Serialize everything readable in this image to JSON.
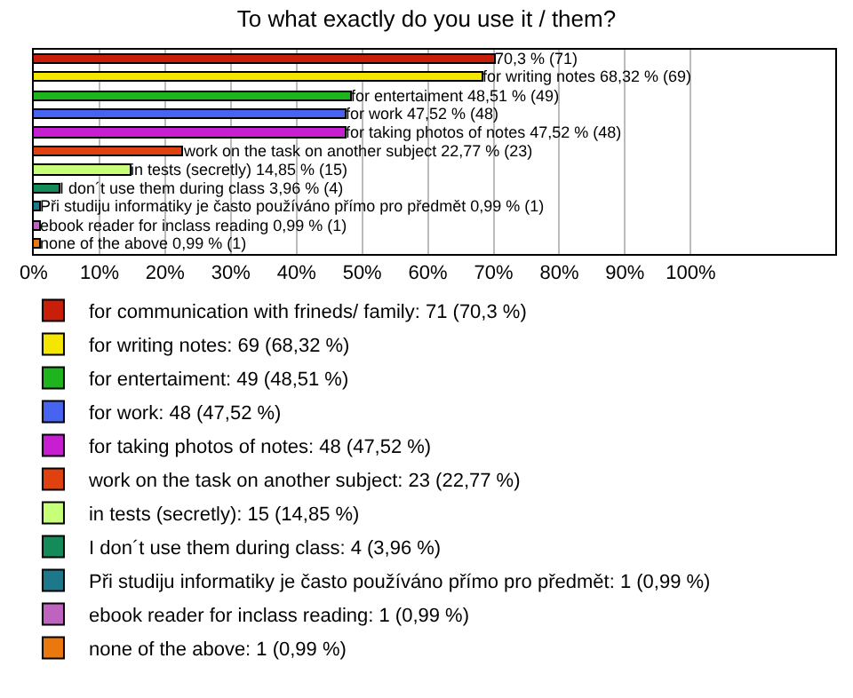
{
  "chart_data": {
    "type": "bar",
    "orientation": "horizontal",
    "title": "To what exactly do you use it / them?",
    "categories": [
      null,
      null,
      null,
      null,
      null,
      null,
      null,
      null,
      null,
      null,
      null
    ],
    "xlim": [
      0,
      122
    ],
    "xticks": [
      {
        "value": 0,
        "label": "0%"
      },
      {
        "value": 10,
        "label": "10%"
      },
      {
        "value": 20,
        "label": "20%"
      },
      {
        "value": 30,
        "label": "30%"
      },
      {
        "value": 40,
        "label": "40%"
      },
      {
        "value": 50,
        "label": "50%"
      },
      {
        "value": 60,
        "label": "60%"
      },
      {
        "value": 70,
        "label": "70%"
      },
      {
        "value": 80,
        "label": "80%"
      },
      {
        "value": 90,
        "label": "90%"
      },
      {
        "value": 100,
        "label": "100%"
      }
    ],
    "grid": "x",
    "legend": "bottom",
    "tick_labels": "x",
    "series": [
      {
        "name": "for communication with frineds/ family: 71 (70,3 %)",
        "color": "#c81e0a",
        "values": [
          70.3,
          null,
          null,
          null,
          null,
          null,
          null,
          null,
          null,
          null,
          null
        ],
        "value_labels": [
          "70,3 % (71)",
          null,
          null,
          null,
          null,
          null,
          null,
          null,
          null,
          null,
          null
        ]
      },
      {
        "name": "for writing notes: 69 (68,32 %)",
        "color": "#f5e600",
        "values": [
          null,
          68.32,
          null,
          null,
          null,
          null,
          null,
          null,
          null,
          null,
          null
        ],
        "value_labels": [
          null,
          "for writing notes 68,32 % (69)",
          null,
          null,
          null,
          null,
          null,
          null,
          null,
          null,
          null
        ]
      },
      {
        "name": "for entertaiment: 49 (48,51 %)",
        "color": "#1eb41e",
        "values": [
          null,
          null,
          48.51,
          null,
          null,
          null,
          null,
          null,
          null,
          null,
          null
        ],
        "value_labels": [
          null,
          null,
          "for entertaiment 48,51 % (49)",
          null,
          null,
          null,
          null,
          null,
          null,
          null,
          null
        ]
      },
      {
        "name": "for work: 48 (47,52 %)",
        "color": "#4664f0",
        "values": [
          null,
          null,
          null,
          47.52,
          null,
          null,
          null,
          null,
          null,
          null,
          null
        ],
        "value_labels": [
          null,
          null,
          null,
          "for work 47,52 % (48)",
          null,
          null,
          null,
          null,
          null,
          null,
          null
        ]
      },
      {
        "name": "for taking photos of notes: 48 (47,52 %)",
        "color": "#c81ed2",
        "values": [
          null,
          null,
          null,
          null,
          47.52,
          null,
          null,
          null,
          null,
          null,
          null
        ],
        "value_labels": [
          null,
          null,
          null,
          null,
          "for taking photos of notes 47,52 % (48)",
          null,
          null,
          null,
          null,
          null,
          null
        ]
      },
      {
        "name": "work on the task on another subject: 23 (22,77 %)",
        "color": "#e1410f",
        "values": [
          null,
          null,
          null,
          null,
          null,
          22.77,
          null,
          null,
          null,
          null,
          null
        ],
        "value_labels": [
          null,
          null,
          null,
          null,
          null,
          "work on the task on another subject 22,77 % (23)",
          null,
          null,
          null,
          null,
          null
        ]
      },
      {
        "name": "in tests (secretly): 15 (14,85 %)",
        "color": "#c8ff78",
        "values": [
          null,
          null,
          null,
          null,
          null,
          null,
          14.85,
          null,
          null,
          null,
          null
        ],
        "value_labels": [
          null,
          null,
          null,
          null,
          null,
          null,
          "in tests (secretly) 14,85 % (15)",
          null,
          null,
          null,
          null
        ]
      },
      {
        "name": "I don´t use them during class: 4 (3,96 %)",
        "color": "#148c5a",
        "values": [
          null,
          null,
          null,
          null,
          null,
          null,
          null,
          3.96,
          null,
          null,
          null
        ],
        "value_labels": [
          null,
          null,
          null,
          null,
          null,
          null,
          null,
          "I don´t use them during class 3,96 % (4)",
          null,
          null,
          null
        ]
      },
      {
        "name": "Při studiju informatiky je často používáno přímo pro předmět: 1 (0,99 %)",
        "color": "#1e788c",
        "values": [
          null,
          null,
          null,
          null,
          null,
          null,
          null,
          null,
          0.99,
          null,
          null
        ],
        "value_labels": [
          null,
          null,
          null,
          null,
          null,
          null,
          null,
          null,
          "Při studiju informatiky je často používáno přímo pro předmět 0,99 % (1)",
          null,
          null
        ]
      },
      {
        "name": "ebook reader for inclass reading: 1 (0,99 %)",
        "color": "#be64be",
        "values": [
          null,
          null,
          null,
          null,
          null,
          null,
          null,
          null,
          null,
          0.99,
          null
        ],
        "value_labels": [
          null,
          null,
          null,
          null,
          null,
          null,
          null,
          null,
          null,
          "ebook reader for inclass reading 0,99 % (1)",
          null
        ]
      },
      {
        "name": "none of the above: 1 (0,99 %)",
        "color": "#eb780f",
        "values": [
          null,
          null,
          null,
          null,
          null,
          null,
          null,
          null,
          null,
          null,
          0.99
        ],
        "value_labels": [
          null,
          null,
          null,
          null,
          null,
          null,
          null,
          null,
          null,
          null,
          "none of the above 0,99 % (1)"
        ]
      }
    ]
  }
}
